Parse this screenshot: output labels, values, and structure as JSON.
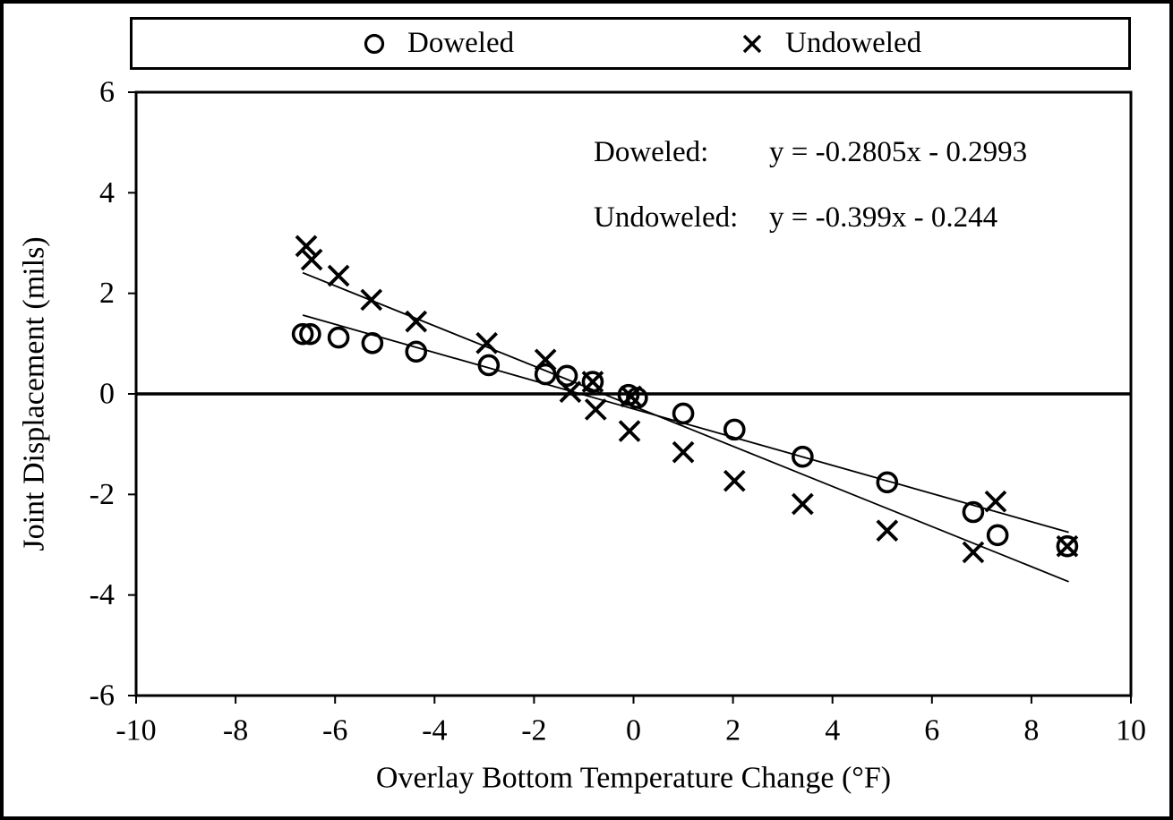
{
  "legend": {
    "items": [
      {
        "label": "Doweled",
        "marker": "circle"
      },
      {
        "label": "Undoweled",
        "marker": "x"
      }
    ]
  },
  "annotations": {
    "rows": [
      {
        "label": "Doweled:",
        "formula": "y = -0.2805x - 0.2993"
      },
      {
        "label": "Undoweled:",
        "formula": "y = -0.399x - 0.244"
      }
    ]
  },
  "chart_data": {
    "type": "scatter",
    "title": "",
    "xlabel": "Overlay Bottom Temperature Change (°F)",
    "ylabel": "Joint Displacement (mils)",
    "xlim": [
      -10,
      10
    ],
    "ylim": [
      -6,
      6
    ],
    "xticks": [
      -10,
      -8,
      -6,
      -4,
      -2,
      0,
      2,
      4,
      6,
      8,
      10
    ],
    "yticks": [
      -6,
      -4,
      -2,
      0,
      2,
      4,
      6
    ],
    "grid": false,
    "legend_position": "top",
    "zero_line": true,
    "colors": {
      "foreground": "#000000",
      "background": "#ffffff"
    },
    "series": [
      {
        "name": "Doweled",
        "marker": "circle",
        "points": [
          [
            -6.65,
            1.19
          ],
          [
            -6.5,
            1.19
          ],
          [
            -5.93,
            1.12
          ],
          [
            -5.25,
            1.01
          ],
          [
            -4.37,
            0.84
          ],
          [
            -2.91,
            0.57
          ],
          [
            -1.77,
            0.39
          ],
          [
            -1.34,
            0.36
          ],
          [
            -0.82,
            0.24
          ],
          [
            -0.1,
            -0.02
          ],
          [
            0.07,
            -0.08
          ],
          [
            1.0,
            -0.39
          ],
          [
            2.03,
            -0.71
          ],
          [
            3.4,
            -1.25
          ],
          [
            5.1,
            -1.76
          ],
          [
            6.83,
            -2.35
          ],
          [
            7.32,
            -2.81
          ],
          [
            8.72,
            -3.03
          ]
        ]
      },
      {
        "name": "Undoweled",
        "marker": "x",
        "points": [
          [
            -6.58,
            2.94
          ],
          [
            -6.47,
            2.67
          ],
          [
            -5.93,
            2.35
          ],
          [
            -5.27,
            1.87
          ],
          [
            -4.37,
            1.44
          ],
          [
            -2.95,
            1.01
          ],
          [
            -1.77,
            0.68
          ],
          [
            -1.27,
            0.04
          ],
          [
            -0.82,
            0.24
          ],
          [
            -0.76,
            -0.31
          ],
          [
            -0.05,
            -0.05
          ],
          [
            -0.08,
            -0.74
          ],
          [
            1.0,
            -1.16
          ],
          [
            2.03,
            -1.73
          ],
          [
            3.4,
            -2.19
          ],
          [
            5.1,
            -2.72
          ],
          [
            6.83,
            -3.15
          ],
          [
            7.28,
            -2.14
          ],
          [
            8.72,
            -3.03
          ]
        ]
      }
    ],
    "trendlines": [
      {
        "name": "Doweled",
        "slope": -0.2805,
        "intercept": -0.2993,
        "x_start": -6.65,
        "x_end": 8.75
      },
      {
        "name": "Undoweled",
        "slope": -0.399,
        "intercept": -0.244,
        "x_start": -6.65,
        "x_end": 8.75
      }
    ]
  }
}
